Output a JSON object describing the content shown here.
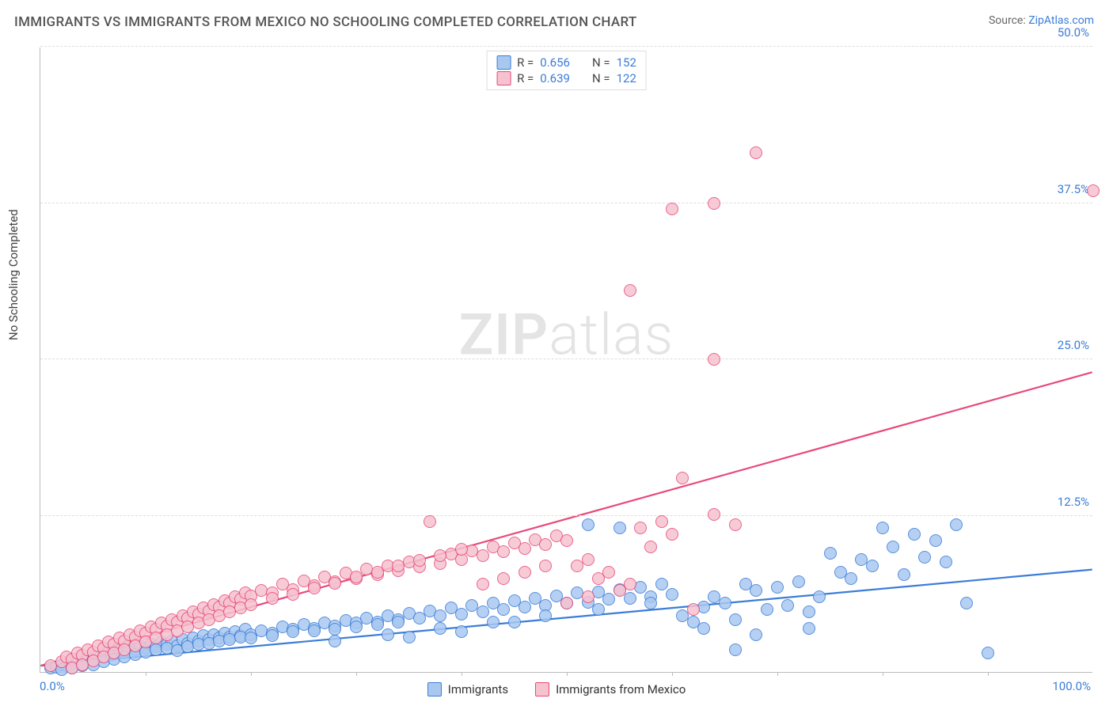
{
  "header": {
    "title": "IMMIGRANTS VS IMMIGRANTS FROM MEXICO NO SCHOOLING COMPLETED CORRELATION CHART",
    "source_prefix": "Source: ",
    "source_link": "ZipAtlas.com"
  },
  "watermark": {
    "bold": "ZIP",
    "light": "atlas"
  },
  "chart": {
    "type": "scatter",
    "ylabel": "No Schooling Completed",
    "xlim": [
      0,
      100
    ],
    "ylim": [
      0,
      50
    ],
    "x_ticks_minor_step": 10,
    "x_tick_labels": {
      "left": "0.0%",
      "right": "100.0%"
    },
    "y_gridlines": [
      12.5,
      25.0,
      37.5,
      50.0
    ],
    "y_tick_labels": [
      "12.5%",
      "25.0%",
      "37.5%",
      "50.0%"
    ],
    "grid_color": "#dddddd",
    "background_color": "#ffffff",
    "axis_color": "#bbbbbb",
    "tick_label_color": "#3b7dd8",
    "marker_radius": 8,
    "marker_border_width": 1.2,
    "marker_fill_opacity": 0.3,
    "trend_line_width": 2.2,
    "title_fontsize": 17,
    "label_fontsize": 15,
    "series": [
      {
        "key": "blue",
        "label": "Immigrants",
        "color_fill": "#a9c8f0",
        "color_stroke": "#3b7dd8",
        "R": "0.656",
        "N": "152",
        "trend": {
          "x1": 0,
          "y1": 0.5,
          "x2": 100,
          "y2": 8.2
        },
        "points": [
          [
            1,
            0.3
          ],
          [
            1.5,
            0.4
          ],
          [
            2,
            0.6
          ],
          [
            2.5,
            0.5
          ],
          [
            3,
            0.7
          ],
          [
            3.2,
            1.0
          ],
          [
            3.5,
            0.8
          ],
          [
            4,
            0.9
          ],
          [
            4.5,
            1.1
          ],
          [
            5,
            1.0
          ],
          [
            5.5,
            1.3
          ],
          [
            6,
            1.2
          ],
          [
            6.2,
            1.6
          ],
          [
            6.8,
            1.4
          ],
          [
            7,
            1.5
          ],
          [
            7.5,
            1.7
          ],
          [
            8,
            1.6
          ],
          [
            8.3,
            2.0
          ],
          [
            9,
            1.8
          ],
          [
            9.5,
            2.1
          ],
          [
            10,
            1.9
          ],
          [
            10.5,
            2.2
          ],
          [
            11,
            2.0
          ],
          [
            11.5,
            2.4
          ],
          [
            12,
            2.2
          ],
          [
            12.5,
            2.5
          ],
          [
            13,
            2.1
          ],
          [
            13.5,
            2.6
          ],
          [
            14,
            2.3
          ],
          [
            14.5,
            2.7
          ],
          [
            15,
            2.5
          ],
          [
            15.5,
            2.9
          ],
          [
            16,
            2.6
          ],
          [
            16.5,
            3.0
          ],
          [
            17,
            2.7
          ],
          [
            17.5,
            3.1
          ],
          [
            18,
            2.8
          ],
          [
            18.5,
            3.2
          ],
          [
            19,
            2.9
          ],
          [
            19.5,
            3.4
          ],
          [
            20,
            3.0
          ],
          [
            21,
            3.3
          ],
          [
            22,
            3.1
          ],
          [
            23,
            3.6
          ],
          [
            24,
            3.4
          ],
          [
            25,
            3.8
          ],
          [
            26,
            3.5
          ],
          [
            27,
            3.9
          ],
          [
            28,
            3.7
          ],
          [
            29,
            4.1
          ],
          [
            30,
            3.9
          ],
          [
            31,
            4.3
          ],
          [
            32,
            4.0
          ],
          [
            33,
            4.5
          ],
          [
            34,
            4.2
          ],
          [
            35,
            4.7
          ],
          [
            36,
            4.3
          ],
          [
            37,
            4.9
          ],
          [
            38,
            4.5
          ],
          [
            39,
            5.1
          ],
          [
            40,
            4.6
          ],
          [
            41,
            5.3
          ],
          [
            42,
            4.8
          ],
          [
            43,
            5.5
          ],
          [
            44,
            5.0
          ],
          [
            45,
            5.7
          ],
          [
            46,
            5.2
          ],
          [
            47,
            5.9
          ],
          [
            48,
            5.3
          ],
          [
            49,
            6.1
          ],
          [
            50,
            5.5
          ],
          [
            51,
            6.3
          ],
          [
            52,
            5.6
          ],
          [
            53,
            6.4
          ],
          [
            54,
            5.8
          ],
          [
            55,
            6.6
          ],
          [
            56,
            5.9
          ],
          [
            57,
            6.8
          ],
          [
            58,
            6.0
          ],
          [
            59,
            7.0
          ],
          [
            60,
            6.2
          ],
          [
            61,
            4.5
          ],
          [
            62,
            4.0
          ],
          [
            63,
            5.2
          ],
          [
            64,
            6.0
          ],
          [
            65,
            5.5
          ],
          [
            66,
            4.2
          ],
          [
            66,
            1.8
          ],
          [
            67,
            7.0
          ],
          [
            68,
            6.5
          ],
          [
            69,
            5.0
          ],
          [
            70,
            6.8
          ],
          [
            71,
            5.3
          ],
          [
            72,
            7.2
          ],
          [
            73,
            4.8
          ],
          [
            74,
            6.0
          ],
          [
            75,
            9.5
          ],
          [
            76,
            8.0
          ],
          [
            77,
            7.5
          ],
          [
            78,
            9.0
          ],
          [
            79,
            8.5
          ],
          [
            80,
            11.5
          ],
          [
            81,
            10.0
          ],
          [
            82,
            7.8
          ],
          [
            83,
            11.0
          ],
          [
            84,
            9.2
          ],
          [
            85,
            10.5
          ],
          [
            86,
            8.8
          ],
          [
            87,
            11.8
          ],
          [
            88,
            5.5
          ],
          [
            52,
            11.8
          ],
          [
            55,
            11.5
          ],
          [
            90,
            1.5
          ],
          [
            35,
            2.8
          ],
          [
            40,
            3.2
          ],
          [
            45,
            4.0
          ],
          [
            28,
            2.5
          ],
          [
            33,
            3.0
          ],
          [
            38,
            3.5
          ],
          [
            43,
            4.0
          ],
          [
            48,
            4.5
          ],
          [
            53,
            5.0
          ],
          [
            58,
            5.5
          ],
          [
            63,
            3.5
          ],
          [
            68,
            3.0
          ],
          [
            73,
            3.5
          ],
          [
            2,
            0.2
          ],
          [
            3,
            0.3
          ],
          [
            4,
            0.5
          ],
          [
            5,
            0.6
          ],
          [
            6,
            0.8
          ],
          [
            7,
            1.0
          ],
          [
            8,
            1.2
          ],
          [
            9,
            1.4
          ],
          [
            10,
            1.6
          ],
          [
            11,
            1.8
          ],
          [
            12,
            1.9
          ],
          [
            13,
            1.7
          ],
          [
            14,
            2.0
          ],
          [
            15,
            2.2
          ],
          [
            16,
            2.3
          ],
          [
            17,
            2.5
          ],
          [
            18,
            2.6
          ],
          [
            19,
            2.8
          ],
          [
            20,
            2.7
          ],
          [
            22,
            2.9
          ],
          [
            24,
            3.2
          ],
          [
            26,
            3.3
          ],
          [
            28,
            3.4
          ],
          [
            30,
            3.6
          ],
          [
            32,
            3.8
          ],
          [
            34,
            4.0
          ]
        ]
      },
      {
        "key": "pink",
        "label": "Immigrants from Mexico",
        "color_fill": "#f6c2cf",
        "color_stroke": "#e84a7a",
        "R": "0.639",
        "N": "122",
        "trend": {
          "x1": 0,
          "y1": 0.5,
          "x2": 100,
          "y2": 24.0
        },
        "points": [
          [
            1,
            0.5
          ],
          [
            2,
            0.8
          ],
          [
            2.5,
            1.2
          ],
          [
            3,
            1.0
          ],
          [
            3.5,
            1.5
          ],
          [
            4,
            1.3
          ],
          [
            4.5,
            1.8
          ],
          [
            5,
            1.6
          ],
          [
            5.5,
            2.1
          ],
          [
            6,
            1.9
          ],
          [
            6.5,
            2.4
          ],
          [
            7,
            2.2
          ],
          [
            7.5,
            2.7
          ],
          [
            8,
            2.5
          ],
          [
            8.5,
            3.0
          ],
          [
            9,
            2.8
          ],
          [
            9.5,
            3.3
          ],
          [
            10,
            3.1
          ],
          [
            10.5,
            3.6
          ],
          [
            11,
            3.4
          ],
          [
            11.5,
            3.9
          ],
          [
            12,
            3.7
          ],
          [
            12.5,
            4.2
          ],
          [
            13,
            4.0
          ],
          [
            13.5,
            4.5
          ],
          [
            14,
            4.3
          ],
          [
            14.5,
            4.8
          ],
          [
            15,
            4.6
          ],
          [
            15.5,
            5.1
          ],
          [
            16,
            4.9
          ],
          [
            16.5,
            5.4
          ],
          [
            17,
            5.2
          ],
          [
            17.5,
            5.7
          ],
          [
            18,
            5.5
          ],
          [
            18.5,
            6.0
          ],
          [
            19,
            5.8
          ],
          [
            19.5,
            6.3
          ],
          [
            20,
            6.1
          ],
          [
            21,
            6.5
          ],
          [
            22,
            6.3
          ],
          [
            23,
            7.0
          ],
          [
            24,
            6.6
          ],
          [
            25,
            7.3
          ],
          [
            26,
            6.9
          ],
          [
            27,
            7.6
          ],
          [
            28,
            7.2
          ],
          [
            29,
            7.9
          ],
          [
            30,
            7.5
          ],
          [
            31,
            8.2
          ],
          [
            32,
            7.8
          ],
          [
            33,
            8.5
          ],
          [
            34,
            8.1
          ],
          [
            35,
            8.8
          ],
          [
            36,
            8.4
          ],
          [
            37,
            12.0
          ],
          [
            38,
            8.7
          ],
          [
            39,
            9.4
          ],
          [
            40,
            9.0
          ],
          [
            41,
            9.7
          ],
          [
            42,
            9.3
          ],
          [
            43,
            10.0
          ],
          [
            44,
            9.6
          ],
          [
            45,
            10.3
          ],
          [
            46,
            9.9
          ],
          [
            47,
            10.6
          ],
          [
            48,
            10.2
          ],
          [
            49,
            10.9
          ],
          [
            50,
            10.5
          ],
          [
            51,
            8.5
          ],
          [
            52,
            9.0
          ],
          [
            53,
            7.5
          ],
          [
            54,
            8.0
          ],
          [
            55,
            6.5
          ],
          [
            56,
            7.0
          ],
          [
            57,
            11.5
          ],
          [
            58,
            10.0
          ],
          [
            59,
            12.0
          ],
          [
            60,
            11.0
          ],
          [
            61,
            15.5
          ],
          [
            62,
            5.0
          ],
          [
            64,
            12.6
          ],
          [
            66,
            11.8
          ],
          [
            56,
            30.5
          ],
          [
            60,
            37.0
          ],
          [
            64,
            37.5
          ],
          [
            68,
            41.5
          ],
          [
            64,
            25.0
          ],
          [
            100,
            38.5
          ],
          [
            3,
            0.3
          ],
          [
            4,
            0.6
          ],
          [
            5,
            0.9
          ],
          [
            6,
            1.2
          ],
          [
            7,
            1.5
          ],
          [
            8,
            1.8
          ],
          [
            9,
            2.1
          ],
          [
            10,
            2.4
          ],
          [
            11,
            2.7
          ],
          [
            12,
            3.0
          ],
          [
            13,
            3.3
          ],
          [
            14,
            3.6
          ],
          [
            15,
            3.9
          ],
          [
            16,
            4.2
          ],
          [
            17,
            4.5
          ],
          [
            18,
            4.8
          ],
          [
            19,
            5.1
          ],
          [
            20,
            5.4
          ],
          [
            22,
            5.9
          ],
          [
            24,
            6.2
          ],
          [
            26,
            6.7
          ],
          [
            28,
            7.1
          ],
          [
            30,
            7.6
          ],
          [
            32,
            8.0
          ],
          [
            34,
            8.5
          ],
          [
            36,
            8.9
          ],
          [
            38,
            9.3
          ],
          [
            40,
            9.8
          ],
          [
            42,
            7.0
          ],
          [
            44,
            7.5
          ],
          [
            46,
            8.0
          ],
          [
            48,
            8.5
          ],
          [
            50,
            5.5
          ],
          [
            52,
            6.0
          ]
        ]
      }
    ]
  },
  "top_legend": {
    "rows": [
      {
        "swatch_fill": "#a9c8f0",
        "swatch_stroke": "#3b7dd8",
        "r_label": "R = ",
        "r_val": "0.656",
        "n_label": "N = ",
        "n_val": "152"
      },
      {
        "swatch_fill": "#f6c2cf",
        "swatch_stroke": "#e84a7a",
        "r_label": "R = ",
        "r_val": "0.639",
        "n_label": "N = ",
        "n_val": "122"
      }
    ]
  },
  "bottom_legend": {
    "items": [
      {
        "swatch_fill": "#a9c8f0",
        "swatch_stroke": "#3b7dd8",
        "label": "Immigrants"
      },
      {
        "swatch_fill": "#f6c2cf",
        "swatch_stroke": "#e84a7a",
        "label": "Immigrants from Mexico"
      }
    ]
  }
}
